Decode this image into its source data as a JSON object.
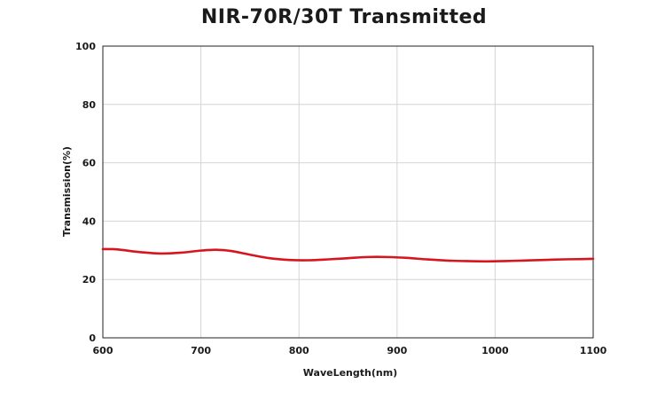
{
  "chart_data": {
    "type": "line",
    "title": "NIR-70R/30T Transmitted",
    "xlabel": "WaveLength(nm)",
    "ylabel": "Transmission(%)",
    "xlim": [
      600,
      1100
    ],
    "ylim": [
      0,
      100
    ],
    "xticks": [
      600,
      700,
      800,
      900,
      1000,
      1100
    ],
    "yticks": [
      0,
      20,
      40,
      60,
      80,
      100
    ],
    "grid": true,
    "line_color": "#d7151f",
    "series": [
      {
        "x": [
          600,
          610,
          620,
          640,
          660,
          680,
          700,
          715,
          730,
          750,
          770,
          790,
          810,
          830,
          850,
          870,
          890,
          910,
          930,
          950,
          970,
          990,
          1010,
          1030,
          1050,
          1070,
          1090,
          1100
        ],
        "values": [
          30.4,
          30.4,
          30.1,
          29.3,
          28.9,
          29.2,
          29.9,
          30.2,
          29.8,
          28.5,
          27.3,
          26.7,
          26.6,
          26.9,
          27.3,
          27.7,
          27.7,
          27.4,
          26.9,
          26.5,
          26.3,
          26.2,
          26.3,
          26.5,
          26.7,
          26.9,
          27.0,
          27.1
        ]
      }
    ]
  }
}
